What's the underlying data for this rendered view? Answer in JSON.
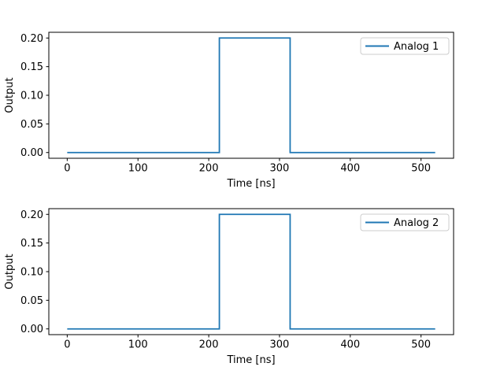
{
  "figure": {
    "background": "#ffffff"
  },
  "chart_data": [
    {
      "type": "line",
      "title": "",
      "xlabel": "Time [ns]",
      "ylabel": "Output",
      "legend_label": "Analog 1",
      "legend_position": "upper right",
      "line_color": "#1f77b4",
      "xlim": [
        -26,
        546
      ],
      "ylim": [
        -0.01,
        0.21
      ],
      "xticks": [
        0,
        100,
        200,
        300,
        400,
        500
      ],
      "xtick_labels": [
        "0",
        "100",
        "200",
        "300",
        "400",
        "500"
      ],
      "yticks": [
        0.0,
        0.05,
        0.1,
        0.15,
        0.2
      ],
      "ytick_labels": [
        "0.00",
        "0.05",
        "0.10",
        "0.15",
        "0.20"
      ],
      "x": [
        0,
        215,
        215,
        315,
        315,
        520
      ],
      "y": [
        0,
        0,
        0.2,
        0.2,
        0,
        0
      ],
      "grid": false
    },
    {
      "type": "line",
      "title": "",
      "xlabel": "Time [ns]",
      "ylabel": "Output",
      "legend_label": "Analog 2",
      "legend_position": "upper right",
      "line_color": "#1f77b4",
      "xlim": [
        -26,
        546
      ],
      "ylim": [
        -0.01,
        0.21
      ],
      "xticks": [
        0,
        100,
        200,
        300,
        400,
        500
      ],
      "xtick_labels": [
        "0",
        "100",
        "200",
        "300",
        "400",
        "500"
      ],
      "yticks": [
        0.0,
        0.05,
        0.1,
        0.15,
        0.2
      ],
      "ytick_labels": [
        "0.00",
        "0.05",
        "0.10",
        "0.15",
        "0.20"
      ],
      "x": [
        0,
        215,
        215,
        315,
        315,
        520
      ],
      "y": [
        0,
        0,
        0.2,
        0.2,
        0,
        0
      ],
      "grid": false
    }
  ]
}
